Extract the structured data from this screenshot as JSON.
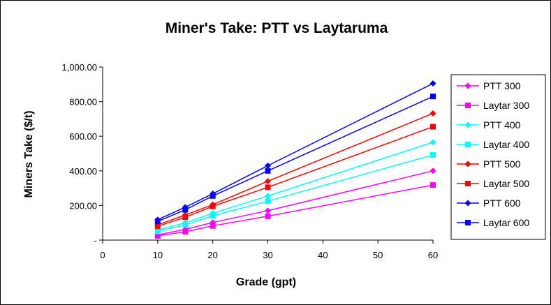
{
  "chart_data": {
    "type": "line",
    "title": "Miner's Take:  PTT vs Laytaruma",
    "xlabel": "Grade (gpt)",
    "ylabel": "Miners Take ($/t)",
    "xlim": [
      0,
      60
    ],
    "ylim": [
      0,
      1000
    ],
    "x_ticks": [
      0,
      10,
      20,
      30,
      40,
      50,
      60
    ],
    "x_tick_labels": [
      "0",
      "10",
      "20",
      "30",
      "40",
      "50",
      "60"
    ],
    "y_ticks": [
      0,
      200,
      400,
      600,
      800,
      1000
    ],
    "y_tick_labels": [
      "-",
      "200.00",
      "400.00",
      "600.00",
      "800.00",
      "1,000.00"
    ],
    "grid": false,
    "legend_position": "right",
    "x": [
      10,
      15,
      20,
      30,
      60
    ],
    "series": [
      {
        "name": "PTT 300",
        "color": "#ff00ff",
        "marker": "diamond",
        "values": [
          30,
          62,
          102,
          170,
          400
        ]
      },
      {
        "name": "Laytar 300",
        "color": "#ff00ff",
        "marker": "square",
        "values": [
          24,
          48,
          82,
          138,
          318
        ]
      },
      {
        "name": "PTT 400",
        "color": "#00ffff",
        "marker": "diamond",
        "values": [
          58,
          100,
          155,
          255,
          565
        ]
      },
      {
        "name": "Laytar 400",
        "color": "#00ffff",
        "marker": "square",
        "values": [
          50,
          88,
          140,
          225,
          492
        ]
      },
      {
        "name": "PTT 500",
        "color": "#ff0000",
        "marker": "diamond",
        "values": [
          88,
          145,
          205,
          340,
          732
        ]
      },
      {
        "name": "Laytar 500",
        "color": "#ff0000",
        "marker": "square",
        "values": [
          80,
          132,
          195,
          305,
          655
        ]
      },
      {
        "name": "PTT 600",
        "color": "#0000ff",
        "marker": "diamond",
        "values": [
          118,
          190,
          268,
          430,
          905
        ]
      },
      {
        "name": "Laytar 600",
        "color": "#0000ff",
        "marker": "square",
        "values": [
          108,
          175,
          255,
          400,
          830
        ]
      }
    ]
  }
}
